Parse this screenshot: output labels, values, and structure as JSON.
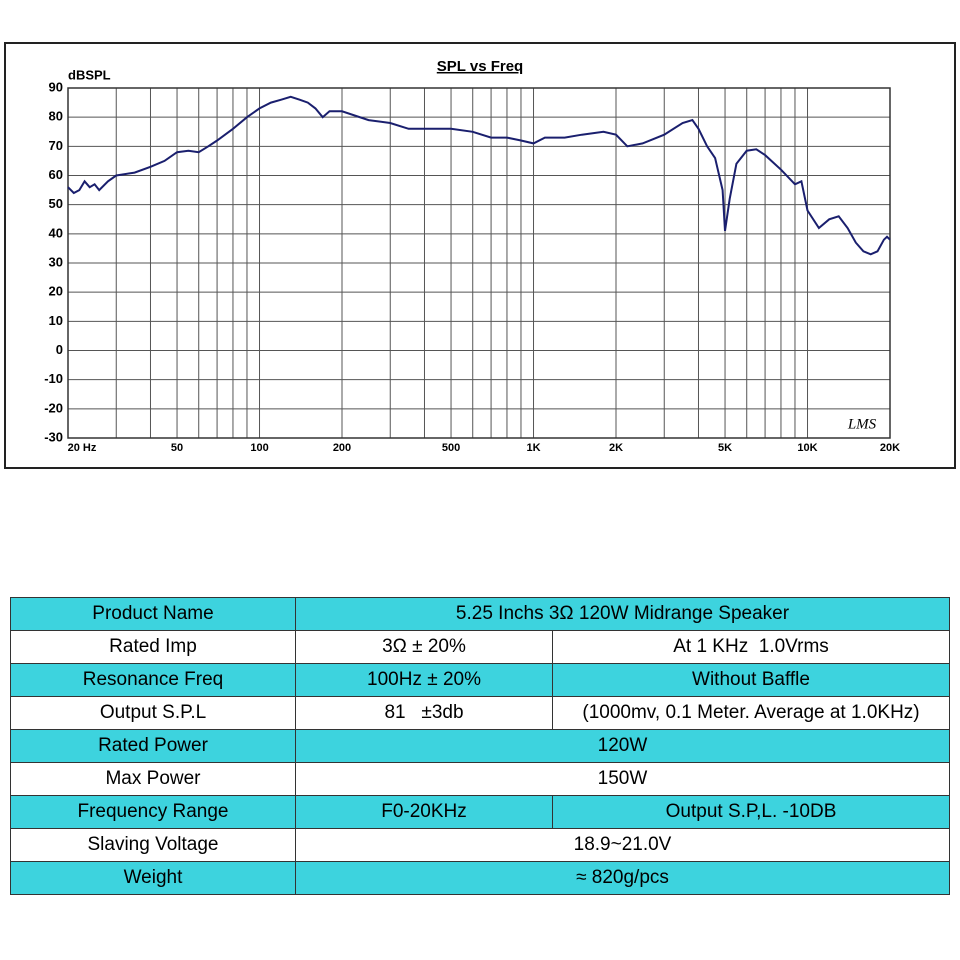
{
  "chart_data": {
    "type": "line",
    "title": "SPL vs Freq",
    "y_label": "dBSPL",
    "annotation": "LMS",
    "log_x": true,
    "grid": true,
    "color": "#1a1f6e",
    "xlim": [
      20,
      20000
    ],
    "ylim": [
      -30,
      90
    ],
    "xticks": [
      {
        "value": 20,
        "label": "20 Hz"
      },
      50,
      100,
      200,
      500,
      {
        "value": 1000,
        "label": "1K"
      },
      {
        "value": 2000,
        "label": "2K"
      },
      {
        "value": 5000,
        "label": "5K"
      },
      {
        "value": 10000,
        "label": "10K"
      },
      {
        "value": 20000,
        "label": "20K"
      }
    ],
    "xgrid": [
      20,
      30,
      40,
      50,
      60,
      70,
      80,
      90,
      100,
      200,
      300,
      400,
      500,
      600,
      700,
      800,
      900,
      1000,
      2000,
      3000,
      4000,
      5000,
      6000,
      7000,
      8000,
      9000,
      10000,
      20000
    ],
    "yticks": [
      -30,
      -20,
      -10,
      0,
      10,
      20,
      30,
      40,
      50,
      60,
      70,
      80,
      90
    ],
    "x": [
      20,
      21,
      22,
      23,
      24,
      25,
      26,
      28,
      30,
      35,
      40,
      45,
      50,
      55,
      60,
      65,
      70,
      80,
      90,
      100,
      110,
      120,
      130,
      140,
      150,
      160,
      170,
      180,
      200,
      250,
      300,
      350,
      400,
      500,
      600,
      700,
      800,
      900,
      1000,
      1100,
      1300,
      1500,
      1800,
      2000,
      2200,
      2500,
      3000,
      3500,
      3800,
      4000,
      4300,
      4600,
      4900,
      5000,
      5200,
      5500,
      6000,
      6500,
      7000,
      8000,
      9000,
      9500,
      10000,
      11000,
      12000,
      13000,
      14000,
      15000,
      16000,
      17000,
      18000,
      19000,
      19500,
      20000
    ],
    "values": [
      56,
      54,
      55,
      58,
      56,
      57,
      55,
      58,
      60,
      61,
      63,
      65,
      68,
      68.5,
      68,
      70,
      72,
      76,
      80,
      83,
      85,
      86,
      87,
      86,
      85,
      83,
      80,
      82,
      82,
      79,
      78,
      76,
      76,
      76,
      75,
      73,
      73,
      72,
      71,
      73,
      73,
      74,
      75,
      74,
      70,
      71,
      74,
      78,
      79,
      76,
      70,
      66,
      55,
      41,
      52,
      64,
      68.5,
      69,
      67,
      62,
      57,
      58,
      48,
      42,
      45,
      46,
      42,
      37,
      34,
      33,
      34,
      38,
      39,
      38
    ]
  },
  "table": {
    "rows": [
      [
        "Product Name",
        "5.25 Inchs 3Ω 120W Midrange Speaker"
      ],
      [
        "Rated Imp",
        "3Ω ± 20%",
        "At 1 KHz  1.0Vrms"
      ],
      [
        "Resonance Freq",
        "100Hz ± 20%",
        "Without Baffle"
      ],
      [
        "Output S.P.L",
        "81   ±3db",
        "(1000mv, 0.1 Meter. Average at 1.0KHz)"
      ],
      [
        "Rated Power",
        "120W"
      ],
      [
        "Max Power",
        "150W"
      ],
      [
        "Frequency Range",
        "F0-20KHz",
        "Output S.P,L. -10DB"
      ],
      [
        "Slaving Voltage",
        "18.9~21.0V"
      ],
      [
        "Weight",
        "≈ 820g/pcs"
      ]
    ]
  }
}
